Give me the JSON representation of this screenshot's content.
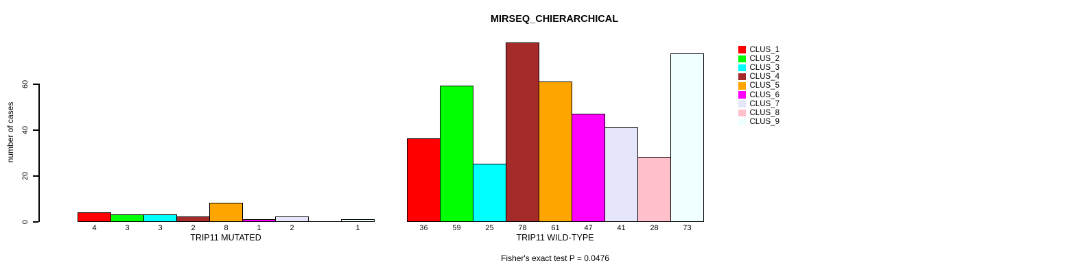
{
  "title": "MIRSEQ_CHIERARCHICAL",
  "y_axis": {
    "label": "number of cases",
    "ticks": [
      0,
      20,
      40,
      60
    ]
  },
  "footer": {
    "text": "Fisher's exact test P = 0.0476"
  },
  "chart_data": {
    "type": "bar",
    "title": "MIRSEQ_CHIERARCHICAL",
    "ylabel": "number of cases",
    "yticks": [
      0,
      20,
      40,
      60
    ],
    "ylim": [
      0,
      80
    ],
    "grid": false,
    "legend_position": "right-outside-top",
    "group_labels": [
      "TRIP11 MUTATED",
      "TRIP11 WILD-TYPE"
    ],
    "categories": [
      "CLUS_1",
      "CLUS_2",
      "CLUS_3",
      "CLUS_4",
      "CLUS_5",
      "CLUS_6",
      "CLUS_7",
      "CLUS_8",
      "CLUS_9"
    ],
    "series": [
      {
        "name": "TRIP11 MUTATED",
        "values": [
          4,
          3,
          3,
          2,
          8,
          1,
          2,
          0,
          1
        ]
      },
      {
        "name": "TRIP11 WILD-TYPE",
        "values": [
          36,
          59,
          25,
          78,
          61,
          47,
          41,
          28,
          73
        ]
      }
    ],
    "colors": [
      "#FF0000",
      "#00FF00",
      "#00FFFF",
      "#A52A2A",
      "#FFA500",
      "#FF00FF",
      "#E6E6FA",
      "#FFC0CB",
      "#F0FFFF"
    ],
    "annotation": "Fisher's exact test P = 0.0476"
  },
  "legend": {
    "items": [
      {
        "label": "CLUS_1",
        "color": "#FF0000"
      },
      {
        "label": "CLUS_2",
        "color": "#00FF00"
      },
      {
        "label": "CLUS_3",
        "color": "#00FFFF"
      },
      {
        "label": "CLUS_4",
        "color": "#A52A2A"
      },
      {
        "label": "CLUS_5",
        "color": "#FFA500"
      },
      {
        "label": "CLUS_6",
        "color": "#FF00FF"
      },
      {
        "label": "CLUS_7",
        "color": "#E6E6FA"
      },
      {
        "label": "CLUS_8",
        "color": "#FFC0CB"
      },
      {
        "label": "CLUS_9",
        "color": "#F0FFFF"
      }
    ]
  }
}
